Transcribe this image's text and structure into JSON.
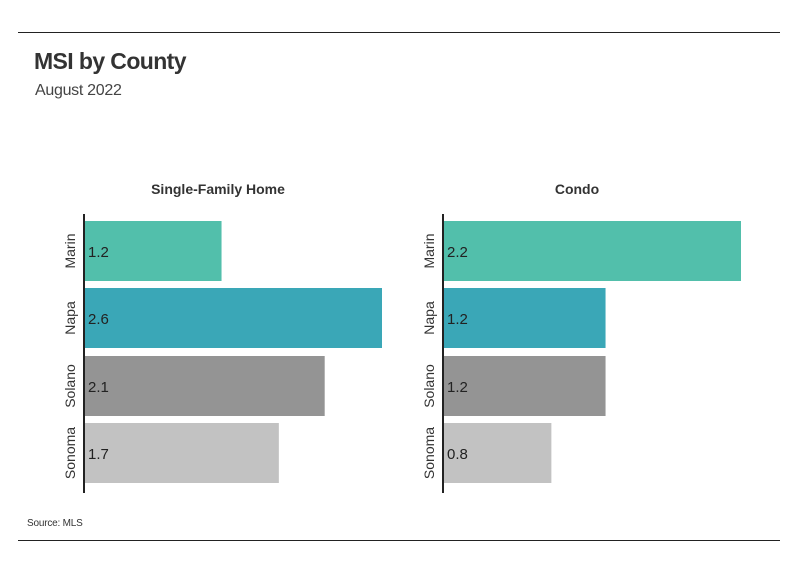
{
  "header": {
    "title": "MSI by County",
    "subtitle": "August 2022"
  },
  "footer": {
    "source": "Source:  MLS"
  },
  "colors": {
    "Marin": "#52bfab",
    "Napa": "#3aa7b7",
    "Solano": "#949494",
    "Sonoma": "#c2c2c2"
  },
  "chart_data": [
    {
      "type": "bar",
      "orientation": "horizontal",
      "title": "Single-Family Home",
      "categories": [
        "Marin",
        "Napa",
        "Solano",
        "Sonoma"
      ],
      "values": [
        1.2,
        2.6,
        2.1,
        1.7
      ],
      "data_labels": [
        "1.2",
        "2.6",
        "2.1",
        "1.7"
      ],
      "xlim": [
        0,
        2.6
      ],
      "grid": false,
      "legend": "none"
    },
    {
      "type": "bar",
      "orientation": "horizontal",
      "title": "Condo",
      "categories": [
        "Marin",
        "Napa",
        "Solano",
        "Sonoma"
      ],
      "values": [
        2.2,
        1.2,
        1.2,
        0.8
      ],
      "data_labels": [
        "2.2",
        "1.2",
        "1.2",
        "0.8"
      ],
      "xlim": [
        0,
        2.2
      ],
      "grid": false,
      "legend": "none"
    }
  ]
}
